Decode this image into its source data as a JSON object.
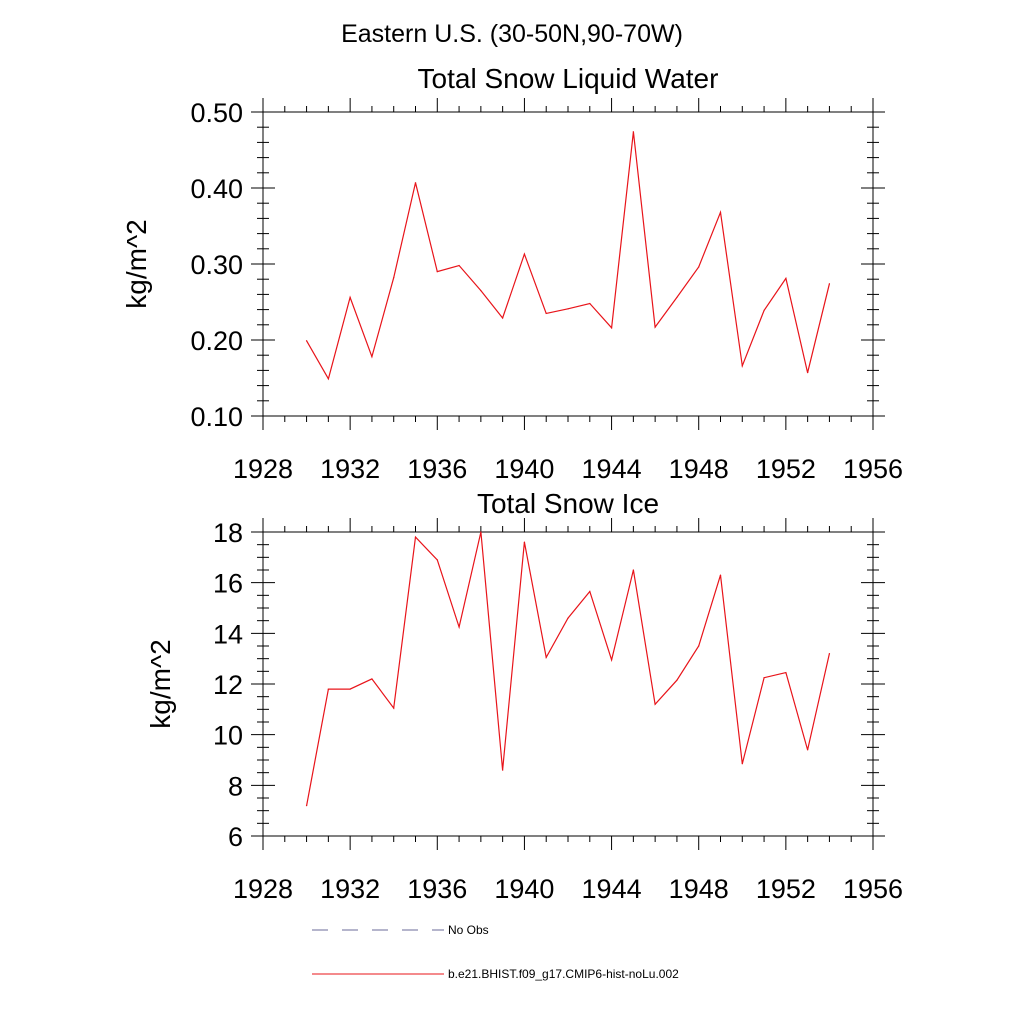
{
  "figure": {
    "title": "Eastern U.S. (30-50N,90-70W)"
  },
  "legend": {
    "placement": "bottom",
    "entries": [
      {
        "label": "No Obs",
        "color": "#6b6b9a",
        "style": "dashed"
      },
      {
        "label": "b.e21.BHIST.f09_g17.CMIP6-hist-noLu.002",
        "color": "#e8141a",
        "style": "solid"
      }
    ]
  },
  "chart_data": [
    {
      "type": "line",
      "title": "Total Snow Liquid Water",
      "xlabel": "",
      "ylabel": "kg/m^2",
      "xlim": [
        1928,
        1956
      ],
      "ylim": [
        0.1,
        0.5
      ],
      "xticks": [
        1928,
        1932,
        1936,
        1940,
        1944,
        1948,
        1952,
        1956
      ],
      "xtick_labels": [
        "1928",
        "1932",
        "1936",
        "1940",
        "1944",
        "1948",
        "1952",
        "1956"
      ],
      "yticks": [
        0.1,
        0.2,
        0.3,
        0.4,
        0.5
      ],
      "ytick_labels": [
        "0.10",
        "0.20",
        "0.30",
        "0.40",
        "0.50"
      ],
      "grid": false,
      "x": [
        1930,
        1931,
        1932,
        1933,
        1934,
        1935,
        1936,
        1937,
        1938,
        1939,
        1940,
        1941,
        1942,
        1943,
        1944,
        1945,
        1946,
        1947,
        1948,
        1949,
        1950,
        1951,
        1952,
        1953,
        1954
      ],
      "series": [
        {
          "name": "b.e21.BHIST.f09_g17.CMIP6-hist-noLu.002",
          "color": "#e8141a",
          "values": [
            0.199,
            0.149,
            0.256,
            0.178,
            0.282,
            0.407,
            0.29,
            0.298,
            0.265,
            0.229,
            0.313,
            0.235,
            0.241,
            0.248,
            0.216,
            0.474,
            0.217,
            0.256,
            0.296,
            0.368,
            0.166,
            0.239,
            0.281,
            0.157,
            0.274
          ]
        }
      ]
    },
    {
      "type": "line",
      "title": "Total Snow Ice",
      "xlabel": "",
      "ylabel": "kg/m^2",
      "xlim": [
        1928,
        1956
      ],
      "ylim": [
        6,
        18
      ],
      "xticks": [
        1928,
        1932,
        1936,
        1940,
        1944,
        1948,
        1952,
        1956
      ],
      "xtick_labels": [
        "1928",
        "1932",
        "1936",
        "1940",
        "1944",
        "1948",
        "1952",
        "1956"
      ],
      "yticks": [
        6,
        8,
        10,
        12,
        14,
        16,
        18
      ],
      "ytick_labels": [
        "6",
        "8",
        "10",
        "12",
        "14",
        "16",
        "18"
      ],
      "grid": false,
      "x": [
        1930,
        1931,
        1932,
        1933,
        1934,
        1935,
        1936,
        1937,
        1938,
        1939,
        1940,
        1941,
        1942,
        1943,
        1944,
        1945,
        1946,
        1947,
        1948,
        1949,
        1950,
        1951,
        1952,
        1953,
        1954
      ],
      "series": [
        {
          "name": "b.e21.BHIST.f09_g17.CMIP6-hist-noLu.002",
          "color": "#e8141a",
          "values": [
            7.2,
            11.8,
            11.8,
            12.2,
            11.05,
            17.8,
            16.9,
            14.25,
            18.0,
            8.6,
            17.6,
            13.05,
            14.6,
            15.65,
            12.95,
            16.5,
            11.2,
            12.15,
            13.5,
            16.3,
            8.85,
            12.25,
            12.45,
            9.4,
            13.2
          ]
        }
      ]
    }
  ]
}
